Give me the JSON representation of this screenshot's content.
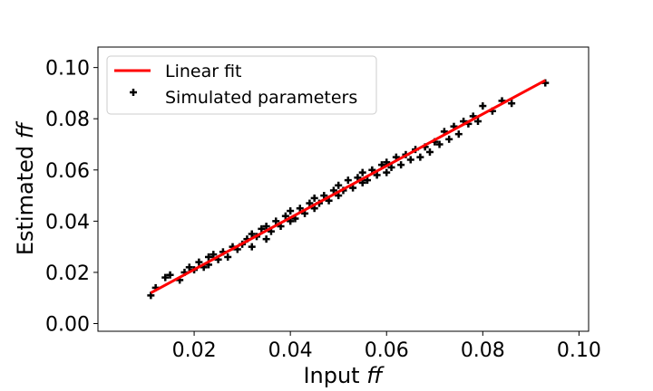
{
  "chart_data": {
    "type": "scatter",
    "xlabel": "Input",
    "xlabel_var": "ff",
    "ylabel": "Estimated",
    "ylabel_var": "ff",
    "xlim": [
      0.0,
      0.102
    ],
    "ylim": [
      -0.003,
      0.108
    ],
    "xticks": [
      "0.02",
      "0.04",
      "0.06",
      "0.08",
      "0.10"
    ],
    "xtick_values": [
      0.02,
      0.04,
      0.06,
      0.08,
      0.1
    ],
    "yticks": [
      "0.00",
      "0.02",
      "0.04",
      "0.06",
      "0.08",
      "0.10"
    ],
    "ytick_values": [
      0.0,
      0.02,
      0.04,
      0.06,
      0.08,
      0.1
    ],
    "legend_position": "top-left",
    "legend": [
      "Linear fit",
      "Simulated parameters"
    ],
    "series": [
      {
        "name": "Linear fit",
        "kind": "line",
        "color": "#ff0000",
        "x": [
          0.011,
          0.093
        ],
        "y": [
          0.012,
          0.095
        ]
      },
      {
        "name": "Simulated parameters",
        "kind": "scatter",
        "marker": "plus",
        "color": "#000000",
        "x": [
          0.011,
          0.012,
          0.014,
          0.015,
          0.017,
          0.018,
          0.019,
          0.02,
          0.021,
          0.022,
          0.023,
          0.023,
          0.024,
          0.025,
          0.026,
          0.027,
          0.028,
          0.029,
          0.03,
          0.031,
          0.032,
          0.032,
          0.033,
          0.034,
          0.035,
          0.035,
          0.036,
          0.037,
          0.038,
          0.039,
          0.04,
          0.04,
          0.041,
          0.042,
          0.043,
          0.044,
          0.045,
          0.045,
          0.046,
          0.047,
          0.048,
          0.049,
          0.05,
          0.05,
          0.051,
          0.052,
          0.053,
          0.054,
          0.055,
          0.055,
          0.056,
          0.057,
          0.058,
          0.059,
          0.06,
          0.06,
          0.061,
          0.062,
          0.063,
          0.064,
          0.065,
          0.066,
          0.067,
          0.068,
          0.069,
          0.07,
          0.071,
          0.072,
          0.073,
          0.074,
          0.075,
          0.076,
          0.077,
          0.078,
          0.079,
          0.08,
          0.082,
          0.084,
          0.086,
          0.093
        ],
        "y": [
          0.011,
          0.014,
          0.018,
          0.019,
          0.017,
          0.02,
          0.022,
          0.021,
          0.024,
          0.022,
          0.026,
          0.023,
          0.027,
          0.025,
          0.028,
          0.026,
          0.03,
          0.029,
          0.031,
          0.033,
          0.03,
          0.035,
          0.034,
          0.037,
          0.033,
          0.038,
          0.036,
          0.04,
          0.038,
          0.042,
          0.04,
          0.044,
          0.041,
          0.045,
          0.043,
          0.047,
          0.045,
          0.049,
          0.047,
          0.05,
          0.048,
          0.052,
          0.05,
          0.054,
          0.052,
          0.056,
          0.053,
          0.057,
          0.055,
          0.059,
          0.056,
          0.06,
          0.058,
          0.062,
          0.059,
          0.063,
          0.061,
          0.065,
          0.062,
          0.066,
          0.064,
          0.068,
          0.065,
          0.069,
          0.067,
          0.071,
          0.07,
          0.075,
          0.072,
          0.077,
          0.074,
          0.079,
          0.078,
          0.081,
          0.079,
          0.085,
          0.083,
          0.087,
          0.086,
          0.094
        ]
      }
    ]
  }
}
